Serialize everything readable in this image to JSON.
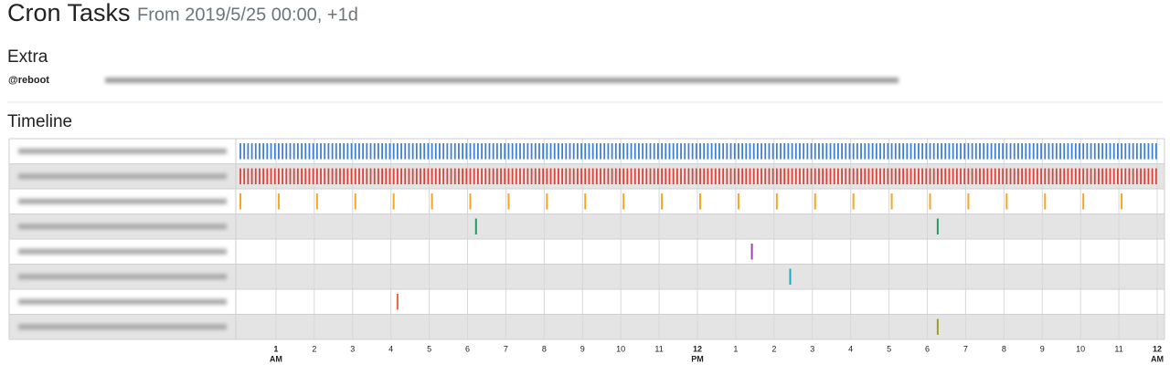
{
  "header": {
    "title": "Cron Tasks",
    "subtitle": "From 2019/5/25 00:00, +1d"
  },
  "extra": {
    "title": "Extra",
    "entries": [
      {
        "schedule": "@reboot"
      }
    ]
  },
  "chart_data": {
    "type": "timeline",
    "title": "Timeline",
    "xlim": [
      0,
      24
    ],
    "xticks": [
      {
        "value": 1,
        "label": "1",
        "period": "AM"
      },
      2,
      3,
      4,
      5,
      6,
      7,
      8,
      9,
      10,
      11,
      {
        "value": 12,
        "label": "12",
        "period": "PM"
      },
      {
        "value": 13,
        "label": "1"
      },
      {
        "value": 14,
        "label": "2"
      },
      {
        "value": 15,
        "label": "3"
      },
      {
        "value": 16,
        "label": "4"
      },
      {
        "value": 17,
        "label": "5"
      },
      {
        "value": 18,
        "label": "6"
      },
      {
        "value": 19,
        "label": "7"
      },
      {
        "value": 20,
        "label": "8"
      },
      {
        "value": 21,
        "label": "9"
      },
      {
        "value": 22,
        "label": "10"
      },
      {
        "value": 23,
        "label": "11"
      },
      {
        "value": 24,
        "label": "12",
        "period": "AM"
      }
    ],
    "grid": true,
    "series": [
      {
        "color": "#3b80d6",
        "values": [
          0,
          0.1,
          0.2,
          0.3,
          0.4,
          0.5,
          0.6,
          0.7,
          0.8,
          0.9,
          1,
          1.1,
          1.2,
          1.3,
          1.4,
          1.5,
          1.6,
          1.7,
          1.8,
          1.9,
          2,
          2.1,
          2.2,
          2.3,
          2.4,
          2.5,
          2.6,
          2.7,
          2.8,
          2.9,
          3,
          3.1,
          3.2,
          3.3,
          3.4,
          3.5,
          3.6,
          3.7,
          3.8,
          3.9,
          4,
          4.1,
          4.2,
          4.3,
          4.4,
          4.5,
          4.6,
          4.7,
          4.8,
          4.9,
          5,
          5.1,
          5.2,
          5.3,
          5.4,
          5.5,
          5.6,
          5.7,
          5.8,
          5.9,
          6,
          6.1,
          6.2,
          6.3,
          6.4,
          6.5,
          6.6,
          6.7,
          6.8,
          6.9,
          7,
          7.1,
          7.2,
          7.3,
          7.4,
          7.5,
          7.6,
          7.7,
          7.8,
          7.9,
          8,
          8.1,
          8.2,
          8.3,
          8.4,
          8.5,
          8.6,
          8.7,
          8.8,
          8.9,
          9,
          9.1,
          9.2,
          9.3,
          9.4,
          9.5,
          9.6,
          9.7,
          9.8,
          9.9,
          10,
          10.1,
          10.2,
          10.3,
          10.4,
          10.5,
          10.6,
          10.7,
          10.8,
          10.9,
          11,
          11.1,
          11.2,
          11.3,
          11.4,
          11.5,
          11.6,
          11.7,
          11.8,
          11.9,
          12,
          12.1,
          12.2,
          12.3,
          12.4,
          12.5,
          12.6,
          12.7,
          12.8,
          12.9,
          13,
          13.1,
          13.2,
          13.3,
          13.4,
          13.5,
          13.6,
          13.7,
          13.8,
          13.9,
          14,
          14.1,
          14.2,
          14.3,
          14.4,
          14.5,
          14.6,
          14.7,
          14.8,
          14.9,
          15,
          15.1,
          15.2,
          15.3,
          15.4,
          15.5,
          15.6,
          15.7,
          15.8,
          15.9,
          16,
          16.1,
          16.2,
          16.3,
          16.4,
          16.5,
          16.6,
          16.7,
          16.8,
          16.9,
          17,
          17.1,
          17.2,
          17.3,
          17.4,
          17.5,
          17.6,
          17.7,
          17.8,
          17.9,
          18,
          18.1,
          18.2,
          18.3,
          18.4,
          18.5,
          18.6,
          18.7,
          18.8,
          18.9,
          19,
          19.1,
          19.2,
          19.3,
          19.4,
          19.5,
          19.6,
          19.7,
          19.8,
          19.9,
          20,
          20.1,
          20.2,
          20.3,
          20.4,
          20.5,
          20.6,
          20.7,
          20.8,
          20.9,
          21,
          21.1,
          21.2,
          21.3,
          21.4,
          21.5,
          21.6,
          21.7,
          21.8,
          21.9,
          22,
          22.1,
          22.2,
          22.3,
          22.4,
          22.5,
          22.6,
          22.7,
          22.8,
          22.9,
          23,
          23.1,
          23.2,
          23.3,
          23.4,
          23.5,
          23.6,
          23.7,
          23.8,
          23.9
        ]
      },
      {
        "color": "#d9443a",
        "values": [
          0,
          0.1,
          0.2,
          0.3,
          0.4,
          0.5,
          0.6,
          0.7,
          0.8,
          0.9,
          1,
          1.1,
          1.2,
          1.3,
          1.4,
          1.5,
          1.6,
          1.7,
          1.8,
          1.9,
          2,
          2.1,
          2.2,
          2.3,
          2.4,
          2.5,
          2.6,
          2.7,
          2.8,
          2.9,
          3,
          3.1,
          3.2,
          3.3,
          3.4,
          3.5,
          3.6,
          3.7,
          3.8,
          3.9,
          4,
          4.1,
          4.2,
          4.3,
          4.4,
          4.5,
          4.6,
          4.7,
          4.8,
          4.9,
          5,
          5.1,
          5.2,
          5.3,
          5.4,
          5.5,
          5.6,
          5.7,
          5.8,
          5.9,
          6,
          6.1,
          6.2,
          6.3,
          6.4,
          6.5,
          6.6,
          6.7,
          6.8,
          6.9,
          7,
          7.1,
          7.2,
          7.3,
          7.4,
          7.5,
          7.6,
          7.7,
          7.8,
          7.9,
          8,
          8.1,
          8.2,
          8.3,
          8.4,
          8.5,
          8.6,
          8.7,
          8.8,
          8.9,
          9,
          9.1,
          9.2,
          9.3,
          9.4,
          9.5,
          9.6,
          9.7,
          9.8,
          9.9,
          10,
          10.1,
          10.2,
          10.3,
          10.4,
          10.5,
          10.6,
          10.7,
          10.8,
          10.9,
          11,
          11.1,
          11.2,
          11.3,
          11.4,
          11.5,
          11.6,
          11.7,
          11.8,
          11.9,
          12,
          12.1,
          12.2,
          12.3,
          12.4,
          12.5,
          12.6,
          12.7,
          12.8,
          12.9,
          13,
          13.1,
          13.2,
          13.3,
          13.4,
          13.5,
          13.6,
          13.7,
          13.8,
          13.9,
          14,
          14.1,
          14.2,
          14.3,
          14.4,
          14.5,
          14.6,
          14.7,
          14.8,
          14.9,
          15,
          15.1,
          15.2,
          15.3,
          15.4,
          15.5,
          15.6,
          15.7,
          15.8,
          15.9,
          16,
          16.1,
          16.2,
          16.3,
          16.4,
          16.5,
          16.6,
          16.7,
          16.8,
          16.9,
          17,
          17.1,
          17.2,
          17.3,
          17.4,
          17.5,
          17.6,
          17.7,
          17.8,
          17.9,
          18,
          18.1,
          18.2,
          18.3,
          18.4,
          18.5,
          18.6,
          18.7,
          18.8,
          18.9,
          19,
          19.1,
          19.2,
          19.3,
          19.4,
          19.5,
          19.6,
          19.7,
          19.8,
          19.9,
          20,
          20.1,
          20.2,
          20.3,
          20.4,
          20.5,
          20.6,
          20.7,
          20.8,
          20.9,
          21,
          21.1,
          21.2,
          21.3,
          21.4,
          21.5,
          21.6,
          21.7,
          21.8,
          21.9,
          22,
          22.1,
          22.2,
          22.3,
          22.4,
          22.5,
          22.6,
          22.7,
          22.8,
          22.9,
          23,
          23.1,
          23.2,
          23.3,
          23.4,
          23.5,
          23.6,
          23.7,
          23.8,
          23.9
        ]
      },
      {
        "color": "#f5a623",
        "values": [
          0,
          1,
          2,
          3,
          4,
          5,
          6,
          7,
          8,
          9,
          10,
          11,
          12,
          13,
          14,
          15,
          16,
          17,
          18,
          19,
          20,
          21,
          22,
          23
        ]
      },
      {
        "color": "#1e9e5e",
        "values": [
          6.15,
          18.2
        ]
      },
      {
        "color": "#a03fb8",
        "values": [
          13.35
        ]
      },
      {
        "color": "#17a9c4",
        "values": [
          14.35
        ]
      },
      {
        "color": "#e8643c",
        "values": [
          4.1
        ]
      },
      {
        "color": "#a59b1d",
        "values": [
          18.2
        ]
      }
    ]
  }
}
